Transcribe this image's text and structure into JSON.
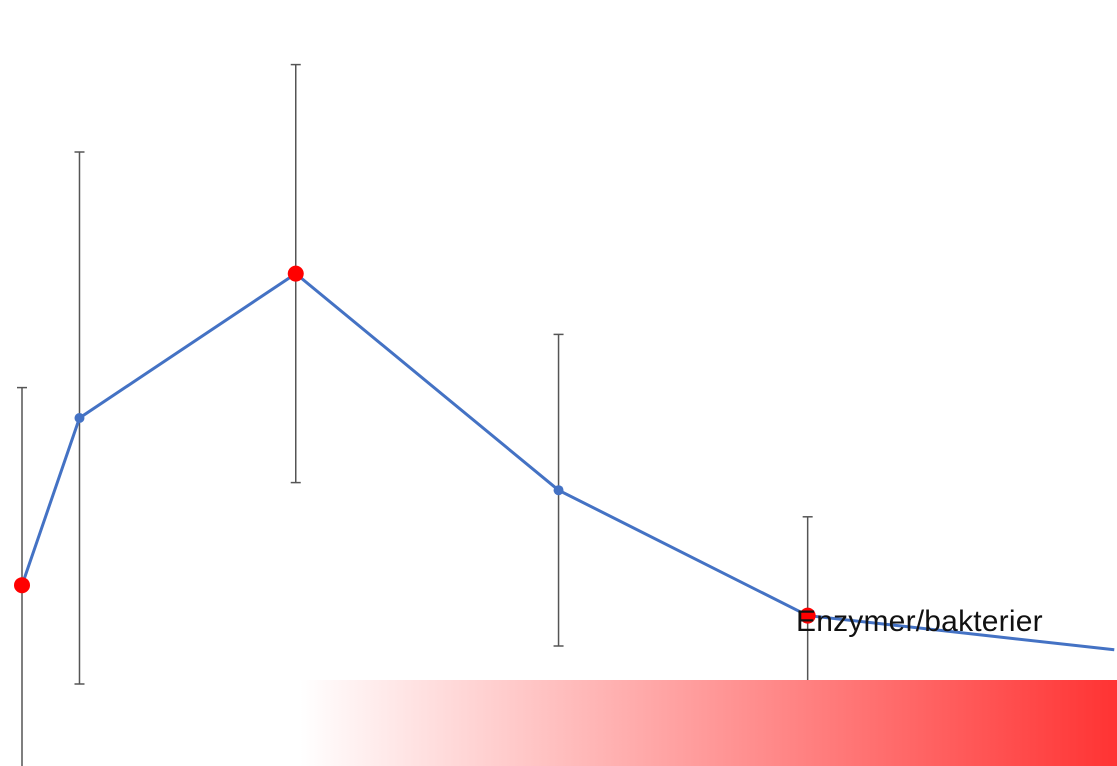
{
  "colors": {
    "line": "#4472C4",
    "marker": "#4472C4",
    "highlight_marker": "#FF0000",
    "error_bar": "#555555",
    "band_start": "#FFFFFF",
    "band_end": "#FF3333"
  },
  "chart_data": {
    "type": "line",
    "title": "",
    "xlabel": "",
    "ylabel": "",
    "axes_visible": false,
    "grid": false,
    "legend": "none",
    "xlim": [
      0,
      20
    ],
    "ylim": [
      0,
      10
    ],
    "series": [
      {
        "points": [
          {
            "x": 0.0,
            "y": 2.3,
            "err": 2.6,
            "highlight": true
          },
          {
            "x": 1.05,
            "y": 4.5,
            "err": 3.5,
            "highlight": false
          },
          {
            "x": 5.0,
            "y": 6.4,
            "err": 2.75,
            "highlight": true
          },
          {
            "x": 9.8,
            "y": 3.55,
            "err": 2.05,
            "highlight": false
          },
          {
            "x": 14.35,
            "y": 1.9,
            "err": 1.3,
            "highlight": true
          },
          {
            "x": 19.95,
            "y": 1.45,
            "err": null,
            "highlight": false
          }
        ]
      }
    ],
    "annotation": "Enzymer/bakterier"
  }
}
